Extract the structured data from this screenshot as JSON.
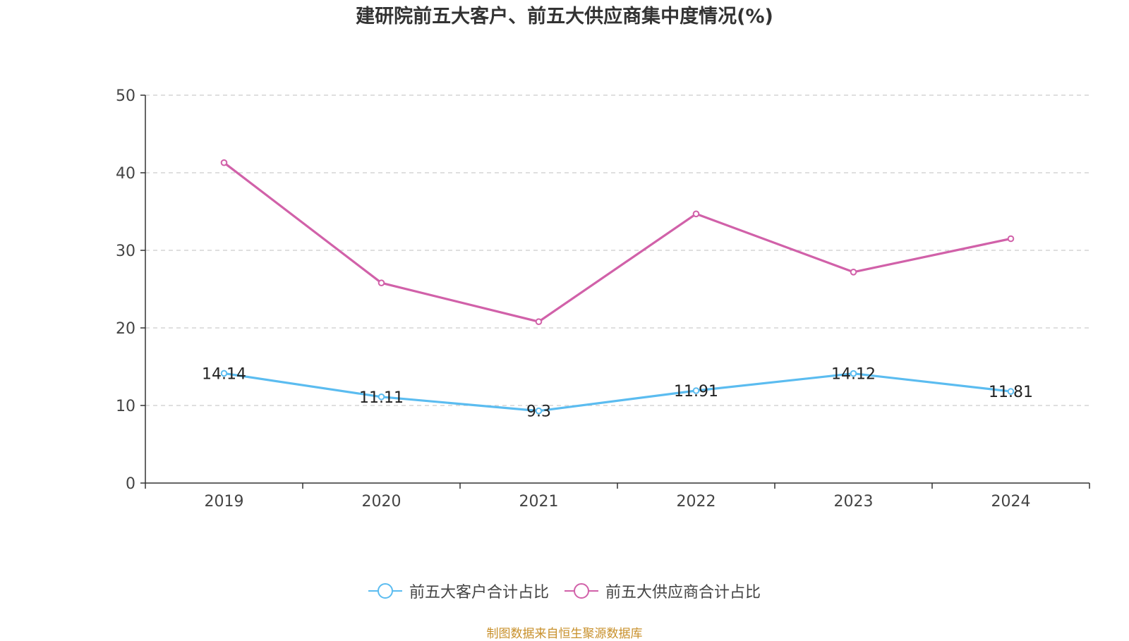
{
  "title": "建研院前五大客户、前五大供应商集中度情况(%)",
  "source": "制图数据来自恒生聚源数据库",
  "colors": {
    "customer": "#5bbcf0",
    "supplier": "#d161a9",
    "source": "#c8902b",
    "grid": "#cccccc",
    "axis": "#333333",
    "text": "#444444"
  },
  "legend": [
    {
      "label": "前五大客户合计占比",
      "icon": "circle-line-icon"
    },
    {
      "label": "前五大供应商合计占比",
      "icon": "circle-line-icon"
    }
  ],
  "chart_data": {
    "type": "line",
    "title": "建研院前五大客户、前五大供应商集中度情况(%)",
    "categories": [
      "2019",
      "2020",
      "2021",
      "2022",
      "2023",
      "2024"
    ],
    "ylim": [
      0,
      50
    ],
    "yticks": [
      0,
      10,
      20,
      30,
      40,
      50
    ],
    "grid": true,
    "legend_position": "bottom",
    "series": [
      {
        "name": "前五大客户合计占比",
        "values": [
          14.14,
          11.11,
          9.3,
          11.91,
          14.12,
          11.81
        ],
        "labels": [
          "14.14",
          "11.11",
          "9.3",
          "11.91",
          "14.12",
          "11.81"
        ],
        "show_labels": true
      },
      {
        "name": "前五大供应商合计占比",
        "values": [
          41.3,
          25.8,
          20.8,
          34.7,
          27.2,
          31.5
        ],
        "show_labels": false
      }
    ]
  }
}
